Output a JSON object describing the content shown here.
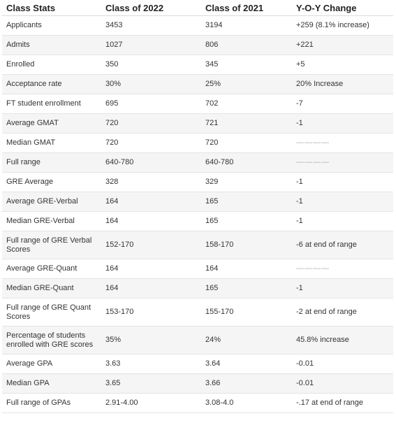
{
  "header": {
    "col1": "Class Stats",
    "col2": "Class of 2022",
    "col3": "Class of 2021",
    "col4": "Y-O-Y Change"
  },
  "rows": [
    {
      "stat": "Applicants",
      "c2022": "3453",
      "c2021": "3194",
      "change": "+259 (8.1% increase)"
    },
    {
      "stat": "Admits",
      "c2022": "1027",
      "c2021": "806",
      "change": "+221"
    },
    {
      "stat": "Enrolled",
      "c2022": "350",
      "c2021": "345",
      "change": "+5"
    },
    {
      "stat": "Acceptance rate",
      "c2022": "30%",
      "c2021": "25%",
      "change": "20% Increase"
    },
    {
      "stat": "FT student enrollment",
      "c2022": "695",
      "c2021": "702",
      "change": "-7"
    },
    {
      "stat": "Average GMAT",
      "c2022": "720",
      "c2021": "721",
      "change": "-1"
    },
    {
      "stat": "Median GMAT",
      "c2022": "720",
      "c2021": "720",
      "change": "————"
    },
    {
      "stat": "Full range",
      "c2022": "640-780",
      "c2021": "640-780",
      "change": "————"
    },
    {
      "stat": "GRE Average",
      "c2022": "328",
      "c2021": "329",
      "change": "-1"
    },
    {
      "stat": "Average GRE-Verbal",
      "c2022": "164",
      "c2021": "165",
      "change": "-1"
    },
    {
      "stat": "Median GRE-Verbal",
      "c2022": "164",
      "c2021": "165",
      "change": "-1"
    },
    {
      "stat": "Full range of GRE Verbal Scores",
      "c2022": "152-170",
      "c2021": "158-170",
      "change": "-6 at end of range"
    },
    {
      "stat": "Average GRE-Quant",
      "c2022": "164",
      "c2021": "164",
      "change": "————"
    },
    {
      "stat": "Median GRE-Quant",
      "c2022": "164",
      "c2021": "165",
      "change": "-1"
    },
    {
      "stat": "Full range of GRE Quant Scores",
      "c2022": "153-170",
      "c2021": "155-170",
      "change": "-2 at end of range"
    },
    {
      "stat": "Percentage of students enrolled with GRE scores",
      "c2022": "35%",
      "c2021": "24%",
      "change": "45.8% increase"
    },
    {
      "stat": "Average GPA",
      "c2022": "3.63",
      "c2021": "3.64",
      "change": "-0.01"
    },
    {
      "stat": "Median GPA",
      "c2022": "3.65",
      "c2021": "3.66",
      "change": "-0.01"
    },
    {
      "stat": "Full range of GPAs",
      "c2022": "2.91-4.00",
      "c2021": "3.08-4.0",
      "change": "-.17 at end of range"
    }
  ]
}
